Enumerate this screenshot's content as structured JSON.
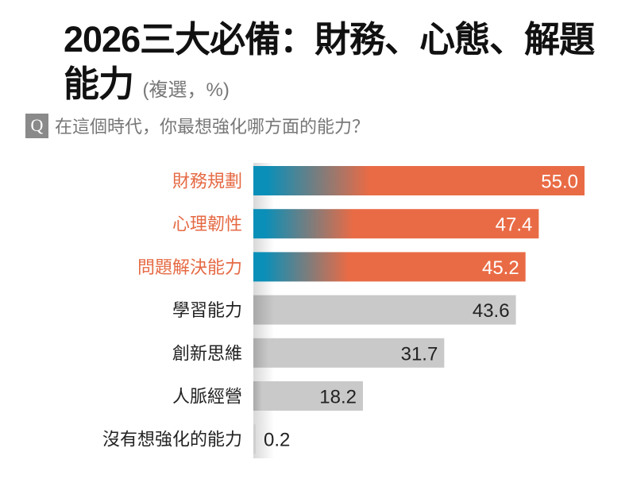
{
  "header": {
    "title": "2026三大必備：財務、心態、解題能力",
    "note": "(複選，%)",
    "question_marker": "Q",
    "question": "在這個時代，你最想強化哪方面的能力？"
  },
  "colors": {
    "highlight": "#e96b45",
    "highlight_start": "#0a8fb8",
    "neutral": "#c9c9c9",
    "highlight_label": "#e56a44",
    "neutral_label": "#222222"
  },
  "chart_data": {
    "type": "bar",
    "orientation": "horizontal",
    "title": "2026三大必備：財務、心態、解題能力",
    "unit": "%",
    "categories": [
      "財務規劃",
      "心理韌性",
      "問題解決能力",
      "學習能力",
      "創新思維",
      "人脈經營",
      "沒有想強化的能力"
    ],
    "values": [
      55.0,
      47.4,
      45.2,
      43.6,
      31.7,
      18.2,
      0.2
    ],
    "value_labels": [
      "55.0",
      "47.4",
      "45.2",
      "43.6",
      "31.7",
      "18.2",
      "0.2"
    ],
    "highlighted": [
      true,
      true,
      true,
      false,
      false,
      false,
      false
    ],
    "xlim": [
      0,
      55
    ],
    "grid": false,
    "legend": "none"
  }
}
